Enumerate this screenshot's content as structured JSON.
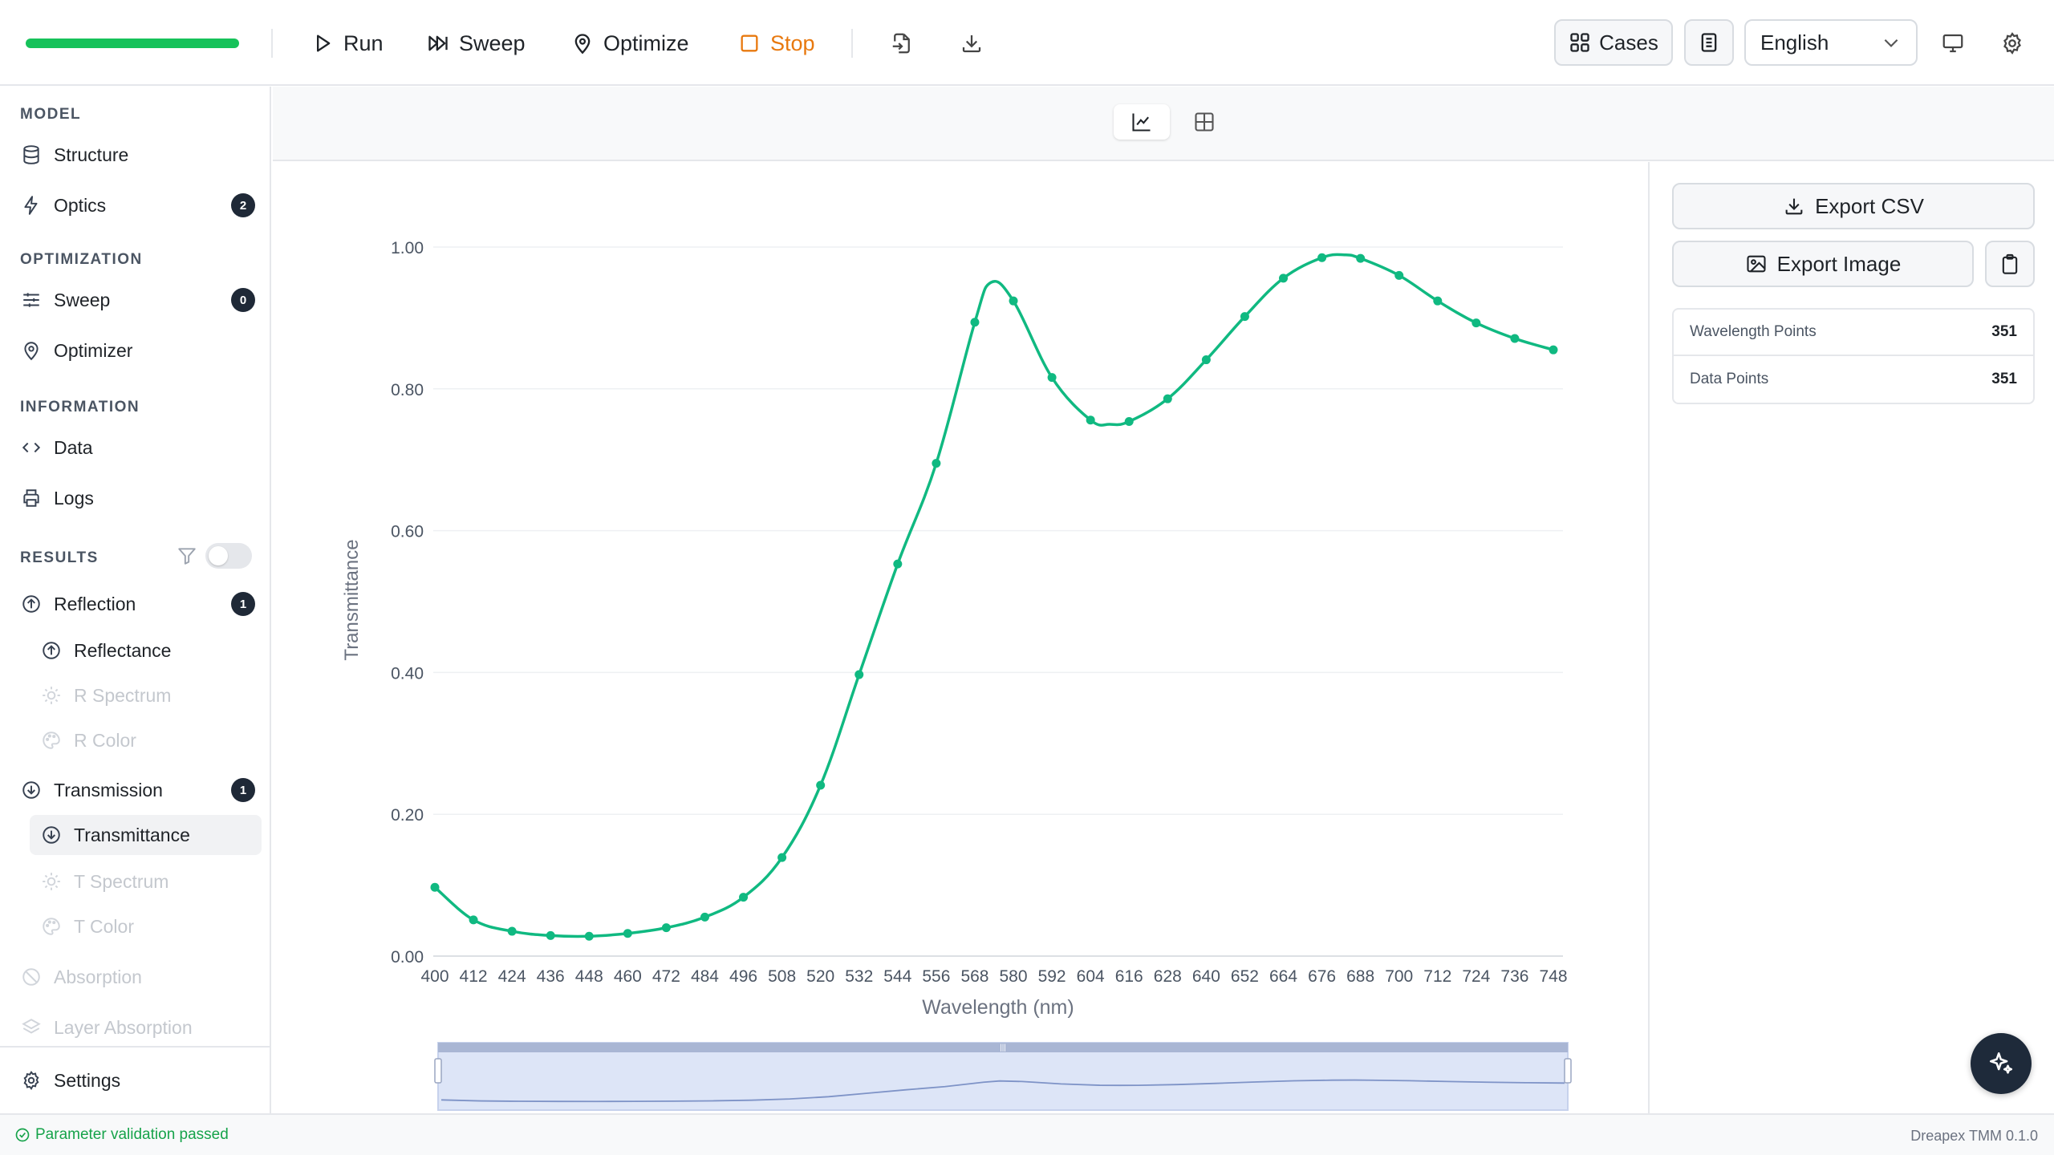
{
  "toolbar": {
    "progress_percent": 100,
    "run_label": "Run",
    "sweep_label": "Sweep",
    "optimize_label": "Optimize",
    "stop_label": "Stop",
    "import_icon": "file-import-icon",
    "download_icon": "download-icon",
    "cases_label": "Cases",
    "language": "English",
    "monitor_icon": "monitor-icon",
    "settings_icon": "gear-icon"
  },
  "sidebar": {
    "sections": {
      "model": "MODEL",
      "optimization": "OPTIMIZATION",
      "information": "INFORMATION",
      "results": "RESULTS"
    },
    "items": {
      "structure": "Structure",
      "optics": "Optics",
      "optics_badge": "2",
      "sweep": "Sweep",
      "sweep_badge": "0",
      "optimizer": "Optimizer",
      "data": "Data",
      "logs": "Logs",
      "reflection": "Reflection",
      "reflection_badge": "1",
      "reflectance": "Reflectance",
      "r_spectrum": "R Spectrum",
      "r_color": "R Color",
      "transmission": "Transmission",
      "transmission_badge": "1",
      "transmittance": "Transmittance",
      "t_spectrum": "T Spectrum",
      "t_color": "T Color",
      "absorption": "Absorption",
      "layer_absorption": "Layer Absorption",
      "settings": "Settings"
    },
    "results_filter_on": false
  },
  "right_panel": {
    "export_csv": "Export CSV",
    "export_image": "Export Image",
    "stats": [
      {
        "label": "Wavelength Points",
        "value": "351"
      },
      {
        "label": "Data Points",
        "value": "351"
      }
    ]
  },
  "status": {
    "message": "Parameter validation passed",
    "version": "Dreapex TMM 0.1.0"
  },
  "colors": {
    "accent": "#16c25a",
    "series": "#10b981",
    "stop": "#e8790f"
  },
  "chart_data": {
    "type": "line",
    "xlabel": "Wavelength (nm)",
    "ylabel": "Transmittance",
    "ylim": [
      0,
      1.0
    ],
    "xlim": [
      400,
      748
    ],
    "grid": true,
    "y_ticks": [
      "0.00",
      "0.20",
      "0.40",
      "0.60",
      "0.80",
      "1.00"
    ],
    "x": [
      400,
      412,
      424,
      436,
      448,
      460,
      472,
      484,
      496,
      508,
      520,
      532,
      544,
      556,
      568,
      580,
      592,
      604,
      616,
      628,
      640,
      652,
      664,
      676,
      688,
      700,
      712,
      724,
      736,
      748
    ],
    "series": [
      {
        "values": [
          0.097,
          0.051,
          0.035,
          0.029,
          0.028,
          0.032,
          0.04,
          0.055,
          0.083,
          0.139,
          0.241,
          0.397,
          0.553,
          0.695,
          0.894,
          0.924,
          0.816,
          0.756,
          0.754,
          0.786,
          0.841,
          0.902,
          0.956,
          0.985,
          0.984,
          0.96,
          0.924,
          0.893,
          0.871,
          0.855
        ]
      }
    ],
    "peak": {
      "x": 573,
      "y": 0.95
    },
    "peak2": {
      "x": 683,
      "y": 0.989
    },
    "valley": {
      "x": 610,
      "y": 0.75
    },
    "has_range_slider": true
  }
}
